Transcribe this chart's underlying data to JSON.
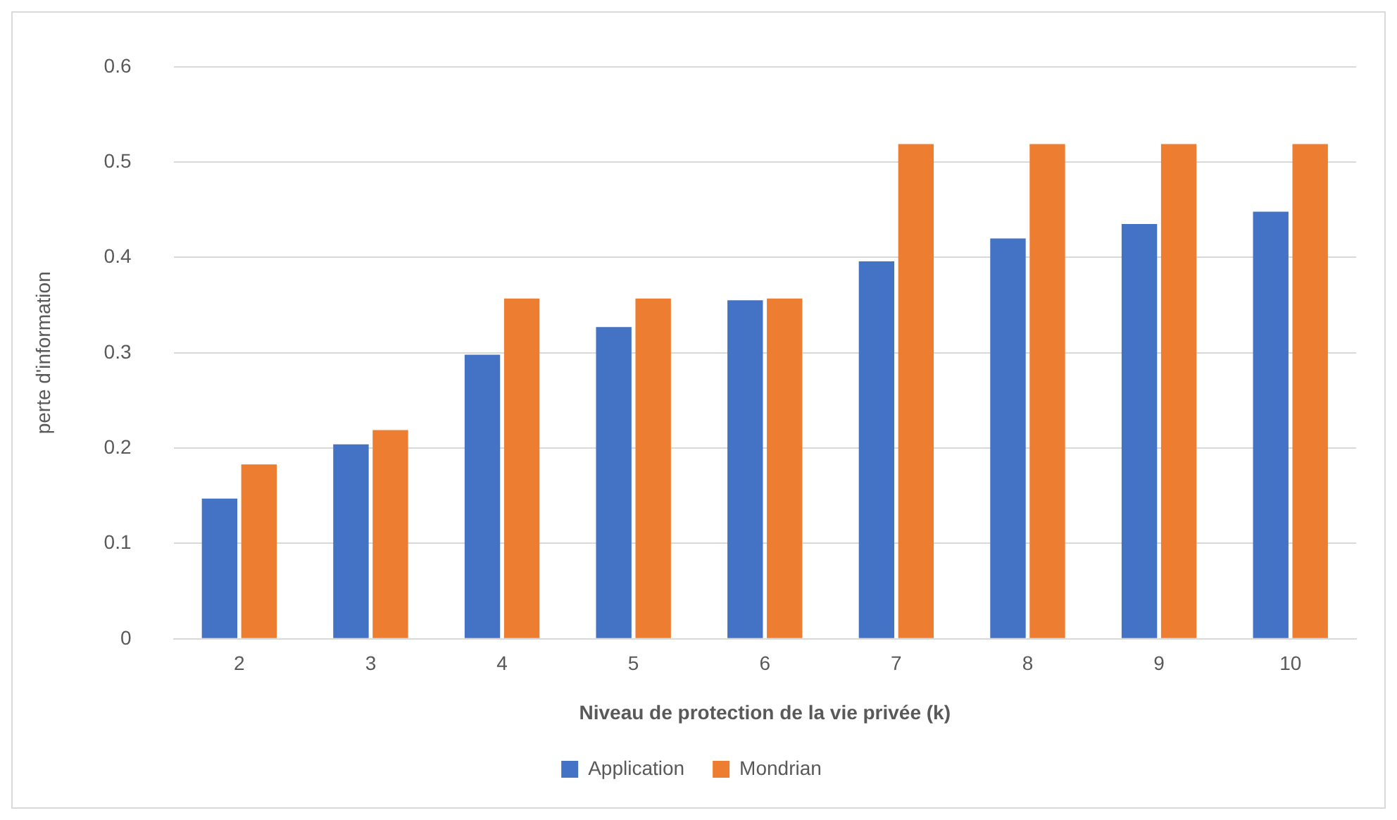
{
  "chart_data": {
    "type": "bar",
    "xlabel": "Niveau de protection de la vie privée (k)",
    "ylabel": "perte d'information",
    "categories": [
      "2",
      "3",
      "4",
      "5",
      "6",
      "7",
      "8",
      "9",
      "10"
    ],
    "series": [
      {
        "name": "Application",
        "color": "#4472c4",
        "values": [
          0.147,
          0.204,
          0.298,
          0.327,
          0.355,
          0.396,
          0.42,
          0.435,
          0.448
        ]
      },
      {
        "name": "Mondrian",
        "color": "#ed7d31",
        "values": [
          0.183,
          0.219,
          0.357,
          0.357,
          0.357,
          0.519,
          0.519,
          0.519,
          0.519
        ]
      }
    ],
    "ylim": [
      0,
      0.6
    ],
    "yticks": [
      0,
      0.1,
      0.2,
      0.3,
      0.4,
      0.5,
      0.6
    ],
    "grid": "y",
    "legend": "bottom"
  }
}
